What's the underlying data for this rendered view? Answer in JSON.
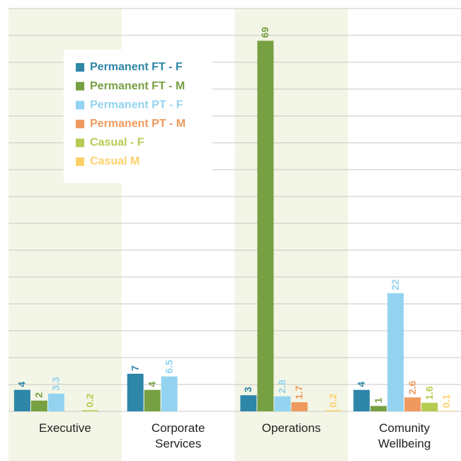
{
  "chart_data": {
    "type": "bar",
    "categories": [
      "Executive",
      "Corporate Services",
      "Operations",
      "Comunity Wellbeing"
    ],
    "series": [
      {
        "name": "Permanent FT - F",
        "color": "#2e86a8",
        "values": [
          4,
          7,
          3,
          4
        ]
      },
      {
        "name": "Permanent FT - M",
        "color": "#77a043",
        "values": [
          2,
          4,
          69,
          1
        ]
      },
      {
        "name": "Permanent PT - F",
        "color": "#93d3f0",
        "values": [
          3.3,
          6.5,
          2.8,
          22
        ]
      },
      {
        "name": "Permanent PT - M",
        "color": "#ee9a5e",
        "values": [
          null,
          null,
          1.7,
          2.6
        ]
      },
      {
        "name": "Casual - F",
        "color": "#b5cc52",
        "values": [
          0.2,
          null,
          null,
          1.6
        ]
      },
      {
        "name": "Casual M",
        "color": "#fdd16a",
        "values": [
          null,
          null,
          0.2,
          0.1
        ]
      }
    ],
    "ylim": [
      0,
      75
    ],
    "yticks": [
      0,
      5,
      10,
      15,
      20,
      25,
      30,
      35,
      40,
      45,
      50,
      55,
      60,
      65,
      70,
      75
    ],
    "grid": true,
    "legend": "top-left"
  }
}
